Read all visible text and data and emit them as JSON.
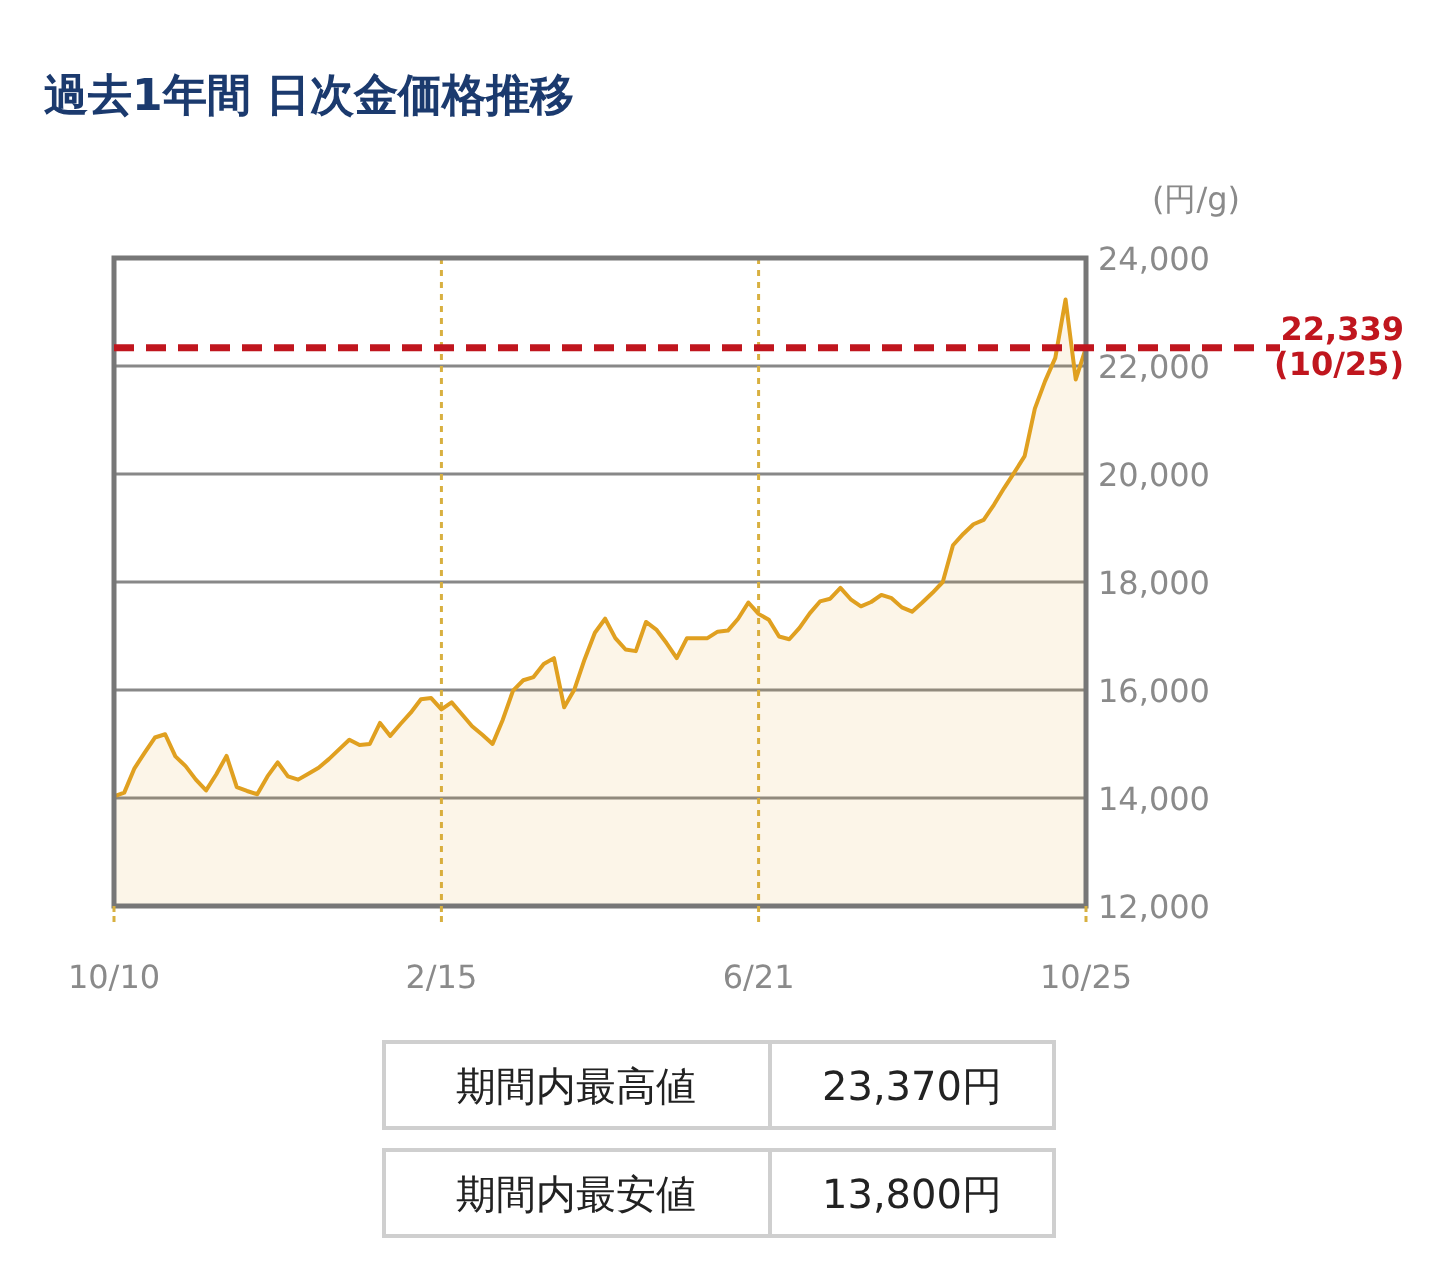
{
  "chart_data": {
    "type": "area",
    "title": "過去1年間 日次金価格推移",
    "ylabel": "(円/g)",
    "categories": [
      "10/10",
      null,
      null,
      null,
      null,
      null,
      null,
      null,
      null,
      null,
      null,
      null,
      null,
      null,
      null,
      null,
      null,
      null,
      null,
      null,
      null,
      null,
      null,
      null,
      null,
      null,
      null,
      null,
      null,
      null,
      null,
      null,
      "2/15",
      null,
      null,
      null,
      null,
      null,
      null,
      null,
      null,
      null,
      null,
      null,
      null,
      null,
      null,
      null,
      null,
      null,
      null,
      null,
      null,
      null,
      null,
      null,
      null,
      null,
      null,
      null,
      null,
      null,
      null,
      "6/21",
      null,
      null,
      null,
      null,
      null,
      null,
      null,
      null,
      null,
      null,
      null,
      null,
      null,
      null,
      null,
      null,
      null,
      null,
      null,
      null,
      null,
      null,
      null,
      null,
      null,
      null,
      null,
      null,
      null,
      null,
      null,
      "10/25"
    ],
    "values": [
      14030,
      14100,
      14550,
      14840,
      15120,
      15180,
      14770,
      14590,
      14340,
      14140,
      14440,
      14780,
      14200,
      14130,
      14070,
      14400,
      14660,
      14400,
      14340,
      14450,
      14560,
      14720,
      14900,
      15080,
      14980,
      15000,
      15390,
      15150,
      15370,
      15580,
      15830,
      15850,
      15640,
      15770,
      15550,
      15330,
      15170,
      15000,
      15450,
      15990,
      16180,
      16240,
      16480,
      16590,
      15680,
      16010,
      16570,
      17060,
      17320,
      16960,
      16750,
      16720,
      17260,
      17120,
      16870,
      16590,
      16960,
      16960,
      16960,
      17080,
      17100,
      17320,
      17620,
      17410,
      17300,
      16990,
      16940,
      17150,
      17420,
      17640,
      17690,
      17890,
      17680,
      17550,
      17630,
      17760,
      17700,
      17530,
      17450,
      17620,
      17800,
      18000,
      18680,
      18890,
      19070,
      19150,
      19430,
      19740,
      20030,
      20330,
      21210,
      21720,
      22150,
      23230,
      21750,
      22339
    ],
    "color": "#e0a020",
    "ylim": [
      12000,
      24000
    ],
    "yticks": [
      {
        "value": 12000,
        "label": "12,000"
      },
      {
        "value": 14000,
        "label": "14,000"
      },
      {
        "value": 16000,
        "label": "16,000"
      },
      {
        "value": 18000,
        "label": "18,000"
      },
      {
        "value": 20000,
        "label": "20,000"
      },
      {
        "value": 22000,
        "label": "22,000"
      },
      {
        "value": 24000,
        "label": "24,000"
      }
    ],
    "grid": true,
    "ref_lines": [
      {
        "axis": "y",
        "value": 22339,
        "label": "22,339\n(10/25)",
        "color": "#c0161e",
        "line_style": "dashed"
      }
    ],
    "annotations": [
      "期間内最高値",
      "23,370円",
      "期間内最安値",
      "13,800円"
    ]
  }
}
